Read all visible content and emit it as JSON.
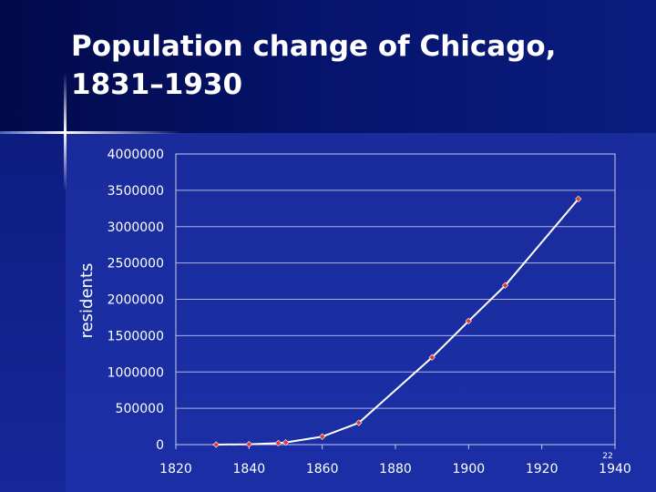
{
  "slide": {
    "title_lines": [
      "Population change of Chicago,",
      "1831–1930"
    ],
    "page_number": "22"
  },
  "chart_data": {
    "type": "line",
    "title": "",
    "xlabel": "",
    "ylabel": "residents",
    "xlim": [
      1820,
      1940
    ],
    "ylim": [
      0,
      4000000
    ],
    "x_ticks": [
      "1820",
      "1840",
      "1860",
      "1880",
      "1900",
      "1920",
      "1940"
    ],
    "y_ticks": [
      "0",
      "500000",
      "1000000",
      "1500000",
      "2000000",
      "2500000",
      "3000000",
      "3500000",
      "4000000"
    ],
    "grid": "horizontal",
    "series": [
      {
        "x": [
          1831,
          1840,
          1848,
          1850,
          1860,
          1870,
          1890,
          1900,
          1910,
          1930
        ],
        "y": [
          100,
          4470,
          20000,
          30000,
          110000,
          300000,
          1200000,
          1700000,
          2190000,
          3380000
        ]
      }
    ],
    "colors": {
      "line": "#ffffff",
      "marker": "#e23a2a",
      "plot_border": "#c8ccec",
      "grid": "#aeb4e2"
    }
  }
}
